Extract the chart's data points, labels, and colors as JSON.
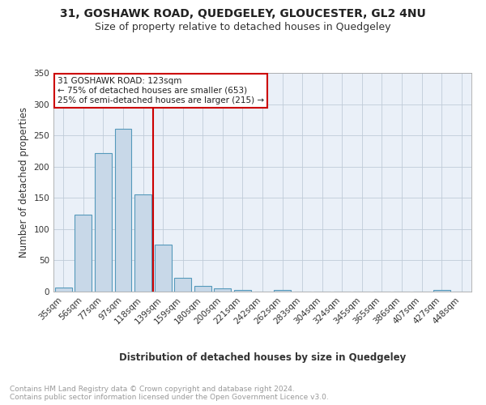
{
  "title": "31, GOSHAWK ROAD, QUEDGELEY, GLOUCESTER, GL2 4NU",
  "subtitle": "Size of property relative to detached houses in Quedgeley",
  "xlabel": "Distribution of detached houses by size in Quedgeley",
  "ylabel": "Number of detached properties",
  "bar_labels": [
    "35sqm",
    "56sqm",
    "77sqm",
    "97sqm",
    "118sqm",
    "139sqm",
    "159sqm",
    "180sqm",
    "200sqm",
    "221sqm",
    "242sqm",
    "262sqm",
    "283sqm",
    "304sqm",
    "324sqm",
    "345sqm",
    "365sqm",
    "386sqm",
    "407sqm",
    "427sqm",
    "448sqm"
  ],
  "bar_values": [
    6,
    123,
    222,
    260,
    155,
    75,
    22,
    9,
    5,
    3,
    0,
    3,
    0,
    0,
    0,
    0,
    0,
    0,
    0,
    3,
    0
  ],
  "bar_color": "#c8d8e8",
  "bar_edgecolor": "#5599bb",
  "vline_x": 4.5,
  "vline_color": "#cc0000",
  "annotation_text": "31 GOSHAWK ROAD: 123sqm\n← 75% of detached houses are smaller (653)\n25% of semi-detached houses are larger (215) →",
  "annotation_box_color": "#ffffff",
  "annotation_box_edgecolor": "#cc0000",
  "ylim": [
    0,
    350
  ],
  "yticks": [
    0,
    50,
    100,
    150,
    200,
    250,
    300,
    350
  ],
  "plot_bg_color": "#eaf0f8",
  "footer_text": "Contains HM Land Registry data © Crown copyright and database right 2024.\nContains public sector information licensed under the Open Government Licence v3.0.",
  "title_fontsize": 10,
  "subtitle_fontsize": 9,
  "xlabel_fontsize": 8.5,
  "ylabel_fontsize": 8.5,
  "tick_fontsize": 7.5,
  "annotation_fontsize": 7.5,
  "footer_fontsize": 6.5
}
